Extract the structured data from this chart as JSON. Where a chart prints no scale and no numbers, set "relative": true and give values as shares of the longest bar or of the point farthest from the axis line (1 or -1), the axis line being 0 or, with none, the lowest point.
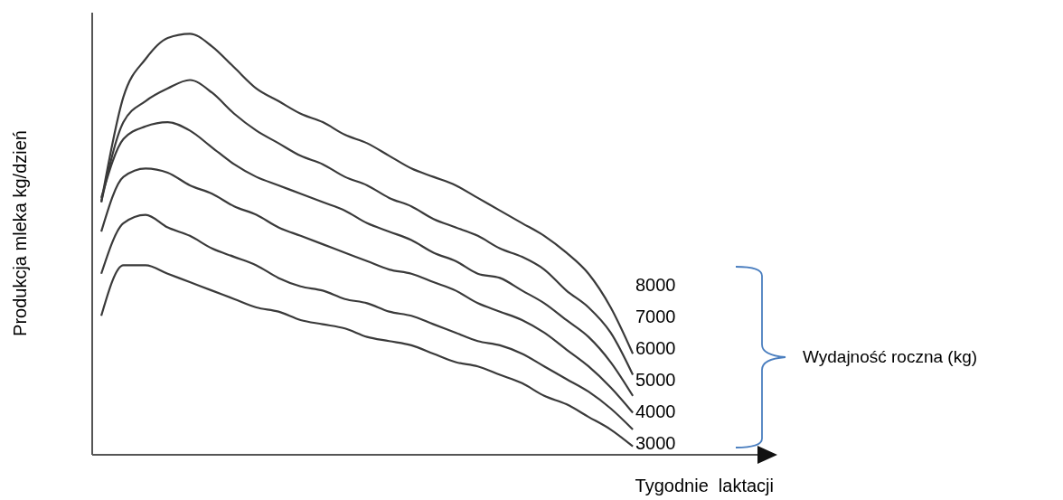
{
  "chart_data": {
    "type": "line",
    "relative": true,
    "xlabel": "Tygodnie  laktacji",
    "ylabel": "Produkcja mleka kg/dzień",
    "legend_title": "Wydajność roczna (kg)",
    "categories": [
      null,
      null,
      null,
      null,
      null,
      null,
      null,
      null,
      null,
      null,
      null,
      null,
      null,
      null,
      null,
      null,
      null,
      null,
      null,
      null,
      null,
      null,
      null,
      null,
      null
    ],
    "series": [
      {
        "name": "8000",
        "color": "#3a3a3a",
        "values": [
          0.6,
          0.85,
          0.94,
          0.99,
          1.0,
          0.97,
          0.92,
          0.87,
          0.84,
          0.81,
          0.79,
          0.76,
          0.74,
          0.71,
          0.68,
          0.66,
          0.64,
          0.61,
          0.58,
          0.55,
          0.52,
          0.48,
          0.43,
          0.35,
          0.24
        ]
      },
      {
        "name": "7000",
        "color": "#3a3a3a",
        "values": [
          0.6,
          0.79,
          0.84,
          0.87,
          0.89,
          0.86,
          0.81,
          0.77,
          0.74,
          0.71,
          0.69,
          0.66,
          0.64,
          0.61,
          0.59,
          0.56,
          0.54,
          0.52,
          0.49,
          0.47,
          0.44,
          0.39,
          0.35,
          0.29,
          0.19
        ]
      },
      {
        "name": "6000",
        "color": "#3a3a3a",
        "values": [
          0.61,
          0.75,
          0.78,
          0.79,
          0.77,
          0.73,
          0.69,
          0.66,
          0.64,
          0.62,
          0.6,
          0.58,
          0.55,
          0.53,
          0.51,
          0.48,
          0.46,
          0.43,
          0.42,
          0.39,
          0.36,
          0.32,
          0.28,
          0.22,
          0.14
        ]
      },
      {
        "name": "5000",
        "color": "#3a3a3a",
        "values": [
          0.53,
          0.66,
          0.68,
          0.67,
          0.64,
          0.62,
          0.59,
          0.57,
          0.54,
          0.52,
          0.5,
          0.48,
          0.46,
          0.44,
          0.43,
          0.41,
          0.39,
          0.36,
          0.34,
          0.32,
          0.29,
          0.25,
          0.21,
          0.16,
          0.1
        ]
      },
      {
        "name": "4000",
        "color": "#3a3a3a",
        "values": [
          0.43,
          0.55,
          0.57,
          0.54,
          0.52,
          0.49,
          0.47,
          0.45,
          0.42,
          0.4,
          0.39,
          0.37,
          0.36,
          0.34,
          0.33,
          0.31,
          0.29,
          0.27,
          0.26,
          0.24,
          0.21,
          0.18,
          0.15,
          0.11,
          0.06
        ]
      },
      {
        "name": "3000",
        "color": "#3a3a3a",
        "values": [
          0.33,
          0.45,
          0.45,
          0.43,
          0.41,
          0.39,
          0.37,
          0.35,
          0.34,
          0.32,
          0.31,
          0.3,
          0.28,
          0.27,
          0.26,
          0.24,
          0.22,
          0.21,
          0.19,
          0.17,
          0.14,
          0.12,
          0.09,
          0.06,
          0.02
        ]
      }
    ]
  }
}
